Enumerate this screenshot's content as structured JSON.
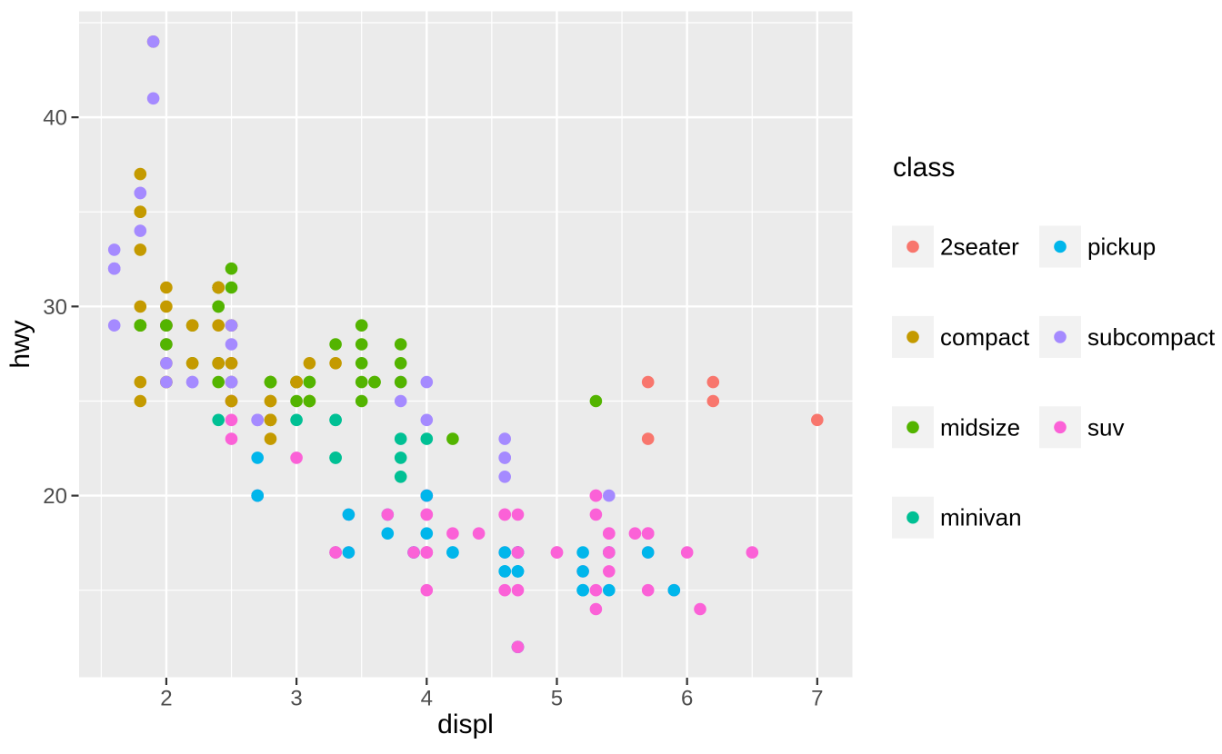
{
  "chart_data": {
    "type": "scatter",
    "title": "",
    "xlabel": "displ",
    "ylabel": "hwy",
    "xlim": [
      1.33,
      7.27
    ],
    "ylim": [
      10.4,
      45.6
    ],
    "x_major_ticks": [
      2,
      3,
      4,
      5,
      6,
      7
    ],
    "y_major_ticks": [
      20,
      30,
      40
    ],
    "x_minor_gridlines": [
      1.5,
      2.5,
      3.5,
      4.5,
      5.5,
      6.5
    ],
    "y_minor_gridlines": [
      15,
      25,
      35,
      45
    ],
    "grid": "on",
    "legend": {
      "title": "class",
      "position": "right",
      "columns": 2,
      "entries": [
        {
          "label": "2seater",
          "color": "#F8766D"
        },
        {
          "label": "compact",
          "color": "#C49A00"
        },
        {
          "label": "midsize",
          "color": "#53B400"
        },
        {
          "label": "minivan",
          "color": "#00C094"
        },
        {
          "label": "pickup",
          "color": "#00B6EB"
        },
        {
          "label": "subcompact",
          "color": "#A58AFF"
        },
        {
          "label": "suv",
          "color": "#FB61D7"
        }
      ]
    },
    "point_format": [
      "displ",
      "hwy",
      "class"
    ],
    "points": [
      [
        1.8,
        29,
        "compact"
      ],
      [
        1.8,
        29,
        "compact"
      ],
      [
        2.0,
        31,
        "compact"
      ],
      [
        2.0,
        30,
        "compact"
      ],
      [
        2.8,
        26,
        "compact"
      ],
      [
        2.8,
        26,
        "compact"
      ],
      [
        3.1,
        27,
        "compact"
      ],
      [
        1.8,
        26,
        "compact"
      ],
      [
        1.8,
        25,
        "compact"
      ],
      [
        2.0,
        28,
        "compact"
      ],
      [
        2.0,
        27,
        "compact"
      ],
      [
        2.8,
        25,
        "compact"
      ],
      [
        2.8,
        25,
        "compact"
      ],
      [
        3.1,
        25,
        "compact"
      ],
      [
        3.1,
        25,
        "compact"
      ],
      [
        2.8,
        24,
        "midsize"
      ],
      [
        3.1,
        25,
        "midsize"
      ],
      [
        4.2,
        23,
        "midsize"
      ],
      [
        5.3,
        20,
        "suv"
      ],
      [
        5.3,
        15,
        "suv"
      ],
      [
        5.3,
        20,
        "suv"
      ],
      [
        5.7,
        17,
        "suv"
      ],
      [
        6.0,
        17,
        "suv"
      ],
      [
        5.7,
        26,
        "2seater"
      ],
      [
        5.7,
        23,
        "2seater"
      ],
      [
        6.2,
        26,
        "2seater"
      ],
      [
        6.2,
        25,
        "2seater"
      ],
      [
        7.0,
        24,
        "2seater"
      ],
      [
        5.3,
        19,
        "suv"
      ],
      [
        5.3,
        14,
        "suv"
      ],
      [
        5.7,
        15,
        "suv"
      ],
      [
        6.5,
        17,
        "suv"
      ],
      [
        2.4,
        27,
        "midsize"
      ],
      [
        2.4,
        30,
        "midsize"
      ],
      [
        3.1,
        26,
        "midsize"
      ],
      [
        3.5,
        29,
        "midsize"
      ],
      [
        3.6,
        26,
        "midsize"
      ],
      [
        2.4,
        24,
        "minivan"
      ],
      [
        3.0,
        24,
        "minivan"
      ],
      [
        3.3,
        22,
        "minivan"
      ],
      [
        3.3,
        22,
        "minivan"
      ],
      [
        3.3,
        24,
        "minivan"
      ],
      [
        3.3,
        24,
        "minivan"
      ],
      [
        3.3,
        17,
        "minivan"
      ],
      [
        3.8,
        22,
        "minivan"
      ],
      [
        3.8,
        21,
        "minivan"
      ],
      [
        3.8,
        23,
        "minivan"
      ],
      [
        4.0,
        23,
        "minivan"
      ],
      [
        3.7,
        19,
        "pickup"
      ],
      [
        3.7,
        18,
        "pickup"
      ],
      [
        3.9,
        17,
        "pickup"
      ],
      [
        3.9,
        17,
        "pickup"
      ],
      [
        4.7,
        16,
        "pickup"
      ],
      [
        4.7,
        16,
        "pickup"
      ],
      [
        4.7,
        12,
        "pickup"
      ],
      [
        5.2,
        17,
        "pickup"
      ],
      [
        5.2,
        15,
        "pickup"
      ],
      [
        3.9,
        17,
        "suv"
      ],
      [
        4.7,
        17,
        "suv"
      ],
      [
        4.7,
        12,
        "suv"
      ],
      [
        4.7,
        17,
        "suv"
      ],
      [
        5.2,
        16,
        "suv"
      ],
      [
        5.7,
        18,
        "suv"
      ],
      [
        5.9,
        15,
        "suv"
      ],
      [
        4.7,
        17,
        "pickup"
      ],
      [
        4.7,
        16,
        "pickup"
      ],
      [
        4.7,
        17,
        "pickup"
      ],
      [
        4.7,
        17,
        "pickup"
      ],
      [
        4.7,
        12,
        "pickup"
      ],
      [
        4.7,
        17,
        "pickup"
      ],
      [
        5.2,
        15,
        "pickup"
      ],
      [
        5.2,
        16,
        "pickup"
      ],
      [
        5.7,
        17,
        "pickup"
      ],
      [
        5.9,
        15,
        "pickup"
      ],
      [
        4.6,
        17,
        "suv"
      ],
      [
        5.4,
        17,
        "suv"
      ],
      [
        5.4,
        18,
        "suv"
      ],
      [
        4.0,
        17,
        "suv"
      ],
      [
        4.0,
        17,
        "suv"
      ],
      [
        4.0,
        17,
        "suv"
      ],
      [
        4.0,
        19,
        "suv"
      ],
      [
        4.6,
        19,
        "suv"
      ],
      [
        5.0,
        17,
        "suv"
      ],
      [
        4.2,
        17,
        "pickup"
      ],
      [
        4.2,
        17,
        "pickup"
      ],
      [
        4.6,
        16,
        "pickup"
      ],
      [
        4.6,
        16,
        "pickup"
      ],
      [
        4.6,
        17,
        "pickup"
      ],
      [
        5.4,
        15,
        "pickup"
      ],
      [
        5.4,
        17,
        "pickup"
      ],
      [
        3.8,
        26,
        "subcompact"
      ],
      [
        3.8,
        25,
        "subcompact"
      ],
      [
        4.0,
        26,
        "subcompact"
      ],
      [
        4.0,
        24,
        "subcompact"
      ],
      [
        4.6,
        21,
        "subcompact"
      ],
      [
        4.6,
        22,
        "subcompact"
      ],
      [
        4.6,
        23,
        "subcompact"
      ],
      [
        4.6,
        22,
        "subcompact"
      ],
      [
        5.4,
        20,
        "subcompact"
      ],
      [
        1.6,
        33,
        "subcompact"
      ],
      [
        1.6,
        32,
        "subcompact"
      ],
      [
        1.6,
        32,
        "subcompact"
      ],
      [
        1.6,
        29,
        "subcompact"
      ],
      [
        1.6,
        32,
        "subcompact"
      ],
      [
        1.8,
        34,
        "subcompact"
      ],
      [
        1.8,
        36,
        "subcompact"
      ],
      [
        1.8,
        36,
        "subcompact"
      ],
      [
        2.0,
        29,
        "subcompact"
      ],
      [
        2.4,
        26,
        "midsize"
      ],
      [
        2.4,
        27,
        "midsize"
      ],
      [
        2.4,
        30,
        "midsize"
      ],
      [
        2.4,
        31,
        "midsize"
      ],
      [
        2.5,
        26,
        "midsize"
      ],
      [
        2.5,
        26,
        "midsize"
      ],
      [
        3.3,
        28,
        "midsize"
      ],
      [
        2.0,
        26,
        "subcompact"
      ],
      [
        2.0,
        29,
        "subcompact"
      ],
      [
        2.0,
        28,
        "subcompact"
      ],
      [
        2.0,
        27,
        "subcompact"
      ],
      [
        2.7,
        24,
        "subcompact"
      ],
      [
        2.7,
        24,
        "subcompact"
      ],
      [
        2.7,
        24,
        "subcompact"
      ],
      [
        3.0,
        22,
        "suv"
      ],
      [
        3.7,
        19,
        "suv"
      ],
      [
        4.0,
        20,
        "suv"
      ],
      [
        4.7,
        17,
        "suv"
      ],
      [
        4.7,
        12,
        "suv"
      ],
      [
        4.7,
        19,
        "suv"
      ],
      [
        5.7,
        18,
        "suv"
      ],
      [
        6.1,
        14,
        "suv"
      ],
      [
        4.0,
        15,
        "suv"
      ],
      [
        4.2,
        18,
        "suv"
      ],
      [
        4.4,
        18,
        "suv"
      ],
      [
        4.6,
        15,
        "suv"
      ],
      [
        5.4,
        17,
        "suv"
      ],
      [
        5.4,
        16,
        "suv"
      ],
      [
        5.4,
        18,
        "suv"
      ],
      [
        4.0,
        17,
        "suv"
      ],
      [
        4.0,
        19,
        "suv"
      ],
      [
        4.6,
        19,
        "suv"
      ],
      [
        5.0,
        17,
        "suv"
      ],
      [
        2.4,
        29,
        "compact"
      ],
      [
        2.4,
        27,
        "compact"
      ],
      [
        2.5,
        31,
        "midsize"
      ],
      [
        2.5,
        32,
        "midsize"
      ],
      [
        3.5,
        27,
        "midsize"
      ],
      [
        3.5,
        26,
        "midsize"
      ],
      [
        3.0,
        26,
        "midsize"
      ],
      [
        3.0,
        25,
        "midsize"
      ],
      [
        3.5,
        25,
        "midsize"
      ],
      [
        3.3,
        17,
        "suv"
      ],
      [
        3.3,
        17,
        "suv"
      ],
      [
        4.0,
        20,
        "suv"
      ],
      [
        5.6,
        18,
        "suv"
      ],
      [
        3.1,
        26,
        "midsize"
      ],
      [
        3.8,
        26,
        "midsize"
      ],
      [
        3.8,
        27,
        "midsize"
      ],
      [
        3.8,
        28,
        "midsize"
      ],
      [
        5.3,
        25,
        "midsize"
      ],
      [
        2.5,
        25,
        "suv"
      ],
      [
        2.5,
        24,
        "suv"
      ],
      [
        2.5,
        27,
        "suv"
      ],
      [
        2.5,
        25,
        "suv"
      ],
      [
        2.5,
        26,
        "suv"
      ],
      [
        2.5,
        23,
        "suv"
      ],
      [
        2.2,
        26,
        "subcompact"
      ],
      [
        2.2,
        26,
        "subcompact"
      ],
      [
        2.5,
        26,
        "subcompact"
      ],
      [
        2.5,
        26,
        "subcompact"
      ],
      [
        2.5,
        25,
        "compact"
      ],
      [
        2.5,
        27,
        "compact"
      ],
      [
        2.5,
        25,
        "compact"
      ],
      [
        2.5,
        27,
        "compact"
      ],
      [
        2.7,
        20,
        "suv"
      ],
      [
        2.7,
        20,
        "suv"
      ],
      [
        3.4,
        19,
        "suv"
      ],
      [
        3.4,
        17,
        "suv"
      ],
      [
        4.0,
        20,
        "suv"
      ],
      [
        4.7,
        17,
        "suv"
      ],
      [
        2.2,
        29,
        "midsize"
      ],
      [
        2.2,
        27,
        "midsize"
      ],
      [
        2.4,
        31,
        "midsize"
      ],
      [
        2.4,
        31,
        "midsize"
      ],
      [
        3.0,
        26,
        "midsize"
      ],
      [
        3.0,
        26,
        "midsize"
      ],
      [
        3.5,
        28,
        "midsize"
      ],
      [
        2.2,
        27,
        "compact"
      ],
      [
        2.2,
        29,
        "compact"
      ],
      [
        2.4,
        31,
        "compact"
      ],
      [
        2.4,
        31,
        "compact"
      ],
      [
        3.0,
        26,
        "compact"
      ],
      [
        3.0,
        26,
        "compact"
      ],
      [
        3.3,
        27,
        "compact"
      ],
      [
        1.8,
        30,
        "compact"
      ],
      [
        1.8,
        33,
        "compact"
      ],
      [
        1.8,
        35,
        "compact"
      ],
      [
        1.8,
        37,
        "compact"
      ],
      [
        1.8,
        35,
        "compact"
      ],
      [
        4.7,
        15,
        "suv"
      ],
      [
        5.7,
        18,
        "suv"
      ],
      [
        2.7,
        20,
        "pickup"
      ],
      [
        2.7,
        20,
        "pickup"
      ],
      [
        2.7,
        22,
        "pickup"
      ],
      [
        3.4,
        17,
        "pickup"
      ],
      [
        3.4,
        19,
        "pickup"
      ],
      [
        4.0,
        18,
        "pickup"
      ],
      [
        4.0,
        20,
        "pickup"
      ],
      [
        2.0,
        29,
        "compact"
      ],
      [
        2.0,
        26,
        "compact"
      ],
      [
        2.0,
        29,
        "compact"
      ],
      [
        2.0,
        29,
        "compact"
      ],
      [
        2.8,
        24,
        "compact"
      ],
      [
        1.9,
        44,
        "compact"
      ],
      [
        2.0,
        29,
        "compact"
      ],
      [
        2.0,
        26,
        "compact"
      ],
      [
        2.0,
        29,
        "compact"
      ],
      [
        2.0,
        29,
        "compact"
      ],
      [
        2.5,
        29,
        "compact"
      ],
      [
        2.5,
        29,
        "compact"
      ],
      [
        2.8,
        23,
        "compact"
      ],
      [
        2.8,
        24,
        "compact"
      ],
      [
        1.9,
        44,
        "subcompact"
      ],
      [
        1.9,
        41,
        "subcompact"
      ],
      [
        2.0,
        29,
        "subcompact"
      ],
      [
        2.0,
        26,
        "subcompact"
      ],
      [
        2.5,
        28,
        "subcompact"
      ],
      [
        2.5,
        29,
        "subcompact"
      ],
      [
        1.8,
        29,
        "midsize"
      ],
      [
        1.8,
        29,
        "midsize"
      ],
      [
        2.0,
        28,
        "midsize"
      ],
      [
        2.0,
        29,
        "midsize"
      ],
      [
        2.8,
        26,
        "midsize"
      ],
      [
        2.8,
        26,
        "midsize"
      ],
      [
        3.6,
        26,
        "midsize"
      ]
    ]
  },
  "style": {
    "background": "#FFFFFF",
    "panel_bg": "#EBEBEB",
    "grid_color": "#FFFFFF",
    "tick_color": "#333333",
    "tick_label_color": "#4D4D4D",
    "axis_title_color": "#000000",
    "legend_key_bg": "#F2F2F2",
    "class_colors": {
      "2seater": "#F8766D",
      "compact": "#C49A00",
      "midsize": "#53B400",
      "minivan": "#00C094",
      "pickup": "#00B6EB",
      "subcompact": "#A58AFF",
      "suv": "#FB61D7"
    }
  }
}
